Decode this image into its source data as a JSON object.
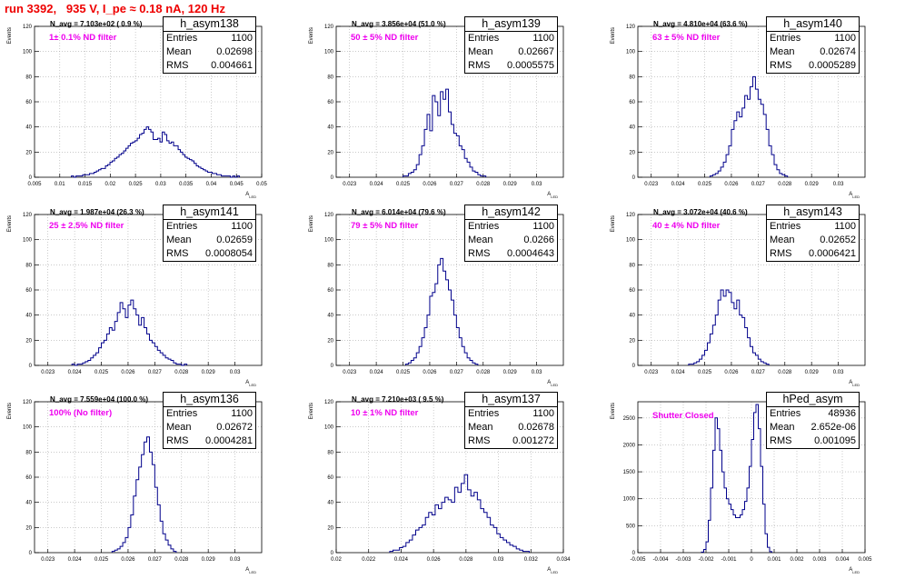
{
  "page_title": "run 3392,   935 V, I_pe ≈ 0.18 nA, 120 Hz",
  "colors": {
    "title": "#ee0000",
    "histogram": "#00008b",
    "annotation": "#ee00ee",
    "grid": "#aaaaaa"
  },
  "chart_data": [
    {
      "type": "histogram",
      "title": "h_asym138",
      "stats": {
        "entries_label": "Entries",
        "entries": "1100",
        "mean_label": "Mean",
        "mean": "0.02698",
        "rms_label": "RMS",
        "rms": "0.004661"
      },
      "n_avg": "N_avg = 7.103e+02 ( 0.9 %)",
      "filter": "1± 0.1% ND filter",
      "ylabel": "Events",
      "xlabel": "A",
      "xlabel_sub": "LED",
      "xlim": [
        0.005,
        0.05
      ],
      "ylim": [
        0,
        120
      ],
      "xticks": [
        "0.005",
        "0.01",
        "0.015",
        "0.02",
        "0.025",
        "0.03",
        "0.035",
        "0.04",
        "0.045",
        "0.05"
      ],
      "yticks": [
        "0",
        "20",
        "40",
        "60",
        "80",
        "100",
        "120"
      ],
      "bins": {
        "start": 0.0123,
        "width": 0.00045,
        "counts": [
          1,
          0,
          1,
          1,
          1,
          2,
          2,
          2,
          3,
          3,
          4,
          5,
          6,
          7,
          7,
          9,
          10,
          12,
          13,
          15,
          16,
          18,
          19,
          21,
          23,
          25,
          27,
          28,
          29,
          31,
          34,
          35,
          38,
          40,
          38,
          36,
          30,
          30,
          31,
          28,
          36,
          34,
          29,
          27,
          28,
          25,
          25,
          22,
          20,
          18,
          16,
          15,
          14,
          13,
          11,
          9,
          8,
          7,
          6,
          5,
          4,
          4,
          3,
          3,
          2,
          2,
          1,
          1,
          1,
          1,
          0,
          1,
          0,
          1
        ]
      }
    },
    {
      "type": "histogram",
      "title": "h_asym139",
      "stats": {
        "entries_label": "Entries",
        "entries": "1100",
        "mean_label": "Mean",
        "mean": "0.02667",
        "rms_label": "RMS",
        "rms": "0.0005575"
      },
      "n_avg": "N_avg = 3.856e+04 (51.0 %)",
      "filter": "50 ± 5% ND filter",
      "ylabel": "Events",
      "xlabel": "A",
      "xlabel_sub": "LED",
      "xlim": [
        0.0225,
        0.031
      ],
      "ylim": [
        0,
        120
      ],
      "xticks": [
        "0.023",
        "0.024",
        "0.025",
        "0.026",
        "0.027",
        "0.028",
        "0.029",
        "0.03"
      ],
      "yticks": [
        "0",
        "20",
        "40",
        "60",
        "80",
        "100",
        "120"
      ],
      "bins": {
        "start": 0.025,
        "width": 0.0001,
        "counts": [
          1,
          1,
          3,
          4,
          6,
          10,
          18,
          25,
          38,
          50,
          37,
          65,
          60,
          49,
          68,
          62,
          70,
          52,
          42,
          35,
          33,
          25,
          22,
          15,
          12,
          8,
          5,
          4,
          2,
          1,
          1
        ]
      }
    },
    {
      "type": "histogram",
      "title": "h_asym140",
      "stats": {
        "entries_label": "Entries",
        "entries": "1100",
        "mean_label": "Mean",
        "mean": "0.02674",
        "rms_label": "RMS",
        "rms": "0.0005289"
      },
      "n_avg": "N_avg = 4.810e+04 (63.6 %)",
      "filter": "63 ± 5% ND filter",
      "ylabel": "Events",
      "xlabel": "A",
      "xlabel_sub": "LED",
      "xlim": [
        0.0225,
        0.031
      ],
      "ylim": [
        0,
        120
      ],
      "xticks": [
        "0.023",
        "0.024",
        "0.025",
        "0.026",
        "0.027",
        "0.028",
        "0.029",
        "0.03"
      ],
      "yticks": [
        "0",
        "20",
        "40",
        "60",
        "80",
        "100",
        "120"
      ],
      "bins": {
        "start": 0.0252,
        "width": 0.0001,
        "counts": [
          1,
          2,
          3,
          5,
          8,
          12,
          18,
          25,
          38,
          45,
          52,
          48,
          55,
          65,
          62,
          72,
          80,
          70,
          62,
          58,
          50,
          38,
          25,
          18,
          10,
          6,
          3,
          2,
          1
        ]
      }
    },
    {
      "type": "histogram",
      "title": "h_asym141",
      "stats": {
        "entries_label": "Entries",
        "entries": "1100",
        "mean_label": "Mean",
        "mean": "0.02659",
        "rms_label": "RMS",
        "rms": "0.0008054"
      },
      "n_avg": "N_avg = 1.987e+04 (26.3 %)",
      "filter": "25 ± 2.5% ND filter",
      "ylabel": "Events",
      "xlabel": "A",
      "xlabel_sub": "LED",
      "xlim": [
        0.0225,
        0.031
      ],
      "ylim": [
        0,
        120
      ],
      "xticks": [
        "0.023",
        "0.024",
        "0.025",
        "0.026",
        "0.027",
        "0.028",
        "0.029",
        "0.03"
      ],
      "yticks": [
        "0",
        "20",
        "40",
        "60",
        "80",
        "100",
        "120"
      ],
      "bins": {
        "start": 0.0239,
        "width": 0.0001,
        "counts": [
          1,
          0,
          1,
          1,
          2,
          3,
          4,
          6,
          8,
          10,
          14,
          18,
          20,
          25,
          30,
          28,
          35,
          42,
          50,
          45,
          38,
          48,
          52,
          45,
          40,
          32,
          38,
          30,
          25,
          20,
          18,
          15,
          12,
          10,
          8,
          6,
          5,
          4,
          2,
          1,
          1,
          0,
          1
        ]
      }
    },
    {
      "type": "histogram",
      "title": "h_asym142",
      "stats": {
        "entries_label": "Entries",
        "entries": "1100",
        "mean_label": "Mean",
        "mean": "0.0266",
        "rms_label": "RMS",
        "rms": "0.0004643"
      },
      "n_avg": "N_avg = 6.014e+04 (79.6 %)",
      "filter": "79 ± 5% ND filter",
      "ylabel": "Events",
      "xlabel": "A",
      "xlabel_sub": "LED",
      "xlim": [
        0.0225,
        0.031
      ],
      "ylim": [
        0,
        120
      ],
      "xticks": [
        "0.023",
        "0.024",
        "0.025",
        "0.026",
        "0.027",
        "0.028",
        "0.029",
        "0.03"
      ],
      "yticks": [
        "0",
        "20",
        "40",
        "60",
        "80",
        "100",
        "120"
      ],
      "bins": {
        "start": 0.0251,
        "width": 0.0001,
        "counts": [
          1,
          2,
          4,
          6,
          10,
          15,
          22,
          30,
          40,
          55,
          58,
          65,
          80,
          85,
          75,
          68,
          60,
          52,
          40,
          30,
          22,
          15,
          10,
          6,
          4,
          2,
          1
        ]
      }
    },
    {
      "type": "histogram",
      "title": "h_asym143",
      "stats": {
        "entries_label": "Entries",
        "entries": "1100",
        "mean_label": "Mean",
        "mean": "0.02652",
        "rms_label": "RMS",
        "rms": "0.0006421"
      },
      "n_avg": "N_avg = 3.072e+04 (40.6 %)",
      "filter": "40 ± 4% ND filter",
      "ylabel": "Events",
      "xlabel": "A",
      "xlabel_sub": "LED",
      "xlim": [
        0.0225,
        0.031
      ],
      "ylim": [
        0,
        120
      ],
      "xticks": [
        "0.023",
        "0.024",
        "0.025",
        "0.026",
        "0.027",
        "0.028",
        "0.029",
        "0.03"
      ],
      "yticks": [
        "0",
        "20",
        "40",
        "60",
        "80",
        "100",
        "120"
      ],
      "bins": {
        "start": 0.0244,
        "width": 0.0001,
        "counts": [
          1,
          1,
          2,
          3,
          5,
          8,
          12,
          18,
          25,
          32,
          40,
          52,
          60,
          55,
          60,
          58,
          50,
          45,
          52,
          40,
          38,
          30,
          22,
          15,
          10,
          8,
          5,
          3,
          2,
          1
        ]
      }
    },
    {
      "type": "histogram",
      "title": "h_asym136",
      "stats": {
        "entries_label": "Entries",
        "entries": "1100",
        "mean_label": "Mean",
        "mean": "0.02672",
        "rms_label": "RMS",
        "rms": "0.0004281"
      },
      "n_avg": "N_avg = 7.559e+04 (100.0 %)",
      "filter": "100% (No filter)",
      "ylabel": "Events",
      "xlabel": "A",
      "xlabel_sub": "LED",
      "xlim": [
        0.0225,
        0.031
      ],
      "ylim": [
        0,
        120
      ],
      "xticks": [
        "0.023",
        "0.024",
        "0.025",
        "0.026",
        "0.027",
        "0.028",
        "0.029",
        "0.03"
      ],
      "yticks": [
        "0",
        "20",
        "40",
        "60",
        "80",
        "100",
        "120"
      ],
      "bins": {
        "start": 0.0254,
        "width": 0.0001,
        "counts": [
          1,
          2,
          3,
          5,
          8,
          12,
          20,
          30,
          45,
          58,
          68,
          78,
          88,
          92,
          80,
          70,
          52,
          38,
          25,
          15,
          10,
          6,
          3,
          1
        ]
      }
    },
    {
      "type": "histogram",
      "title": "h_asym137",
      "stats": {
        "entries_label": "Entries",
        "entries": "1100",
        "mean_label": "Mean",
        "mean": "0.02678",
        "rms_label": "RMS",
        "rms": "0.001272"
      },
      "n_avg": "N_avg = 7.210e+03 ( 9.5 %)",
      "filter": "10 ± 1% ND filter",
      "ylabel": "Events",
      "xlabel": "A",
      "xlabel_sub": "LED",
      "xlim": [
        0.02,
        0.034
      ],
      "ylim": [
        0,
        120
      ],
      "xticks": [
        "0.02",
        "0.022",
        "0.024",
        "0.026",
        "0.028",
        "0.03",
        "0.032",
        "0.034"
      ],
      "yticks": [
        "0",
        "20",
        "40",
        "60",
        "80",
        "100",
        "120"
      ],
      "bins": {
        "start": 0.0233,
        "width": 0.0002,
        "counts": [
          1,
          2,
          2,
          4,
          5,
          8,
          10,
          14,
          18,
          20,
          22,
          28,
          32,
          30,
          38,
          35,
          40,
          44,
          42,
          40,
          52,
          48,
          55,
          62,
          50,
          45,
          48,
          42,
          35,
          32,
          28,
          22,
          20,
          15,
          12,
          10,
          8,
          6,
          5,
          3,
          2,
          1,
          1
        ]
      }
    },
    {
      "type": "histogram",
      "title": "hPed_asym",
      "stats": {
        "entries_label": "Entries",
        "entries": "48936",
        "mean_label": "Mean",
        "mean": "2.652e-06",
        "rms_label": "RMS",
        "rms": "0.001095"
      },
      "n_avg": "",
      "filter": "Shutter Closed",
      "ylabel": "Events",
      "xlabel": "A",
      "xlabel_sub": "LED",
      "xlim": [
        -0.005,
        0.005
      ],
      "ylim": [
        0,
        2800
      ],
      "xticks": [
        "-0.005",
        "-0.004",
        "-0.003",
        "-0.002",
        "-0.001",
        "0",
        "0.001",
        "0.002",
        "0.003",
        "0.004",
        "0.005"
      ],
      "yticks": [
        "0",
        "500",
        "1000",
        "1500",
        "2000",
        "2500"
      ],
      "bins": {
        "start": -0.0022,
        "width": 0.0001,
        "counts": [
          10,
          60,
          200,
          600,
          1200,
          1900,
          2500,
          2300,
          1900,
          1500,
          1200,
          1000,
          900,
          800,
          700,
          650,
          650,
          700,
          800,
          950,
          1200,
          1600,
          2100,
          2600,
          2750,
          2300,
          1600,
          900,
          350,
          100,
          20
        ]
      }
    }
  ]
}
